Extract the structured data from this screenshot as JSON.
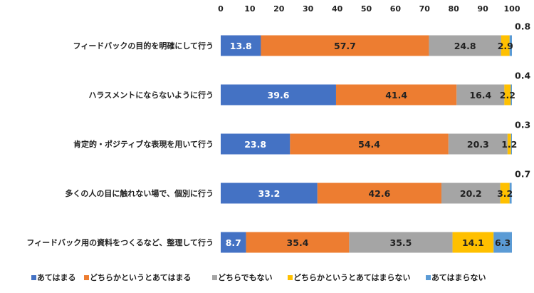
{
  "chart_data": {
    "type": "bar",
    "orientation": "horizontal",
    "stacked": true,
    "xlim": [
      0,
      100
    ],
    "ticks": [
      0,
      10,
      20,
      30,
      40,
      50,
      60,
      70,
      80,
      90,
      100
    ],
    "tick_labels": [
      "0",
      "10",
      "20",
      "30",
      "40",
      "50",
      "60",
      "70",
      "80",
      "90",
      "100"
    ],
    "axis_position": "top",
    "grid": false,
    "legend_position": "bottom",
    "categories": [
      "フィードバックの目的を明確にして行う",
      "ハラスメントにならないように行う",
      "肯定的・ポジティブな表現を用いて行う",
      "多くの人の目に触れない場で、個別に行う",
      "フィードバック用の資料をつくるなど、整理して行う"
    ],
    "series": [
      {
        "name": "あてはまる",
        "color": "#4472C4",
        "label_color": "#ffffff",
        "values": [
          13.8,
          39.6,
          23.8,
          33.2,
          8.7
        ],
        "labels": [
          "13.8",
          "39.6",
          "23.8",
          "33.2",
          "8.7"
        ]
      },
      {
        "name": "どちらかというとあてはまる",
        "color": "#ED7D31",
        "label_color": "#222222",
        "values": [
          57.7,
          41.4,
          54.4,
          42.6,
          35.4
        ],
        "labels": [
          "57.7",
          "41.4",
          "54.4",
          "42.6",
          "35.4"
        ]
      },
      {
        "name": "どちらでもない",
        "color": "#A5A5A5",
        "label_color": "#222222",
        "values": [
          24.8,
          16.4,
          20.3,
          20.2,
          35.5
        ],
        "labels": [
          "24.8",
          "16.4",
          "20.3",
          "20.2",
          "35.5"
        ]
      },
      {
        "name": "どちらかというとあてはまらない",
        "color": "#FFC000",
        "label_color": "#222222",
        "values": [
          2.9,
          2.2,
          1.2,
          3.2,
          14.1
        ],
        "labels": [
          "2.9",
          "2.2",
          "1.2",
          "3.2",
          "14.1"
        ]
      },
      {
        "name": "あてはまらない",
        "color": "#5B9BD5",
        "label_color": "#222222",
        "values": [
          0.8,
          0.4,
          0.3,
          0.7,
          6.3
        ],
        "labels": [
          "0.8",
          "0.4",
          "0.3",
          "0.7",
          "6.3"
        ]
      }
    ]
  }
}
